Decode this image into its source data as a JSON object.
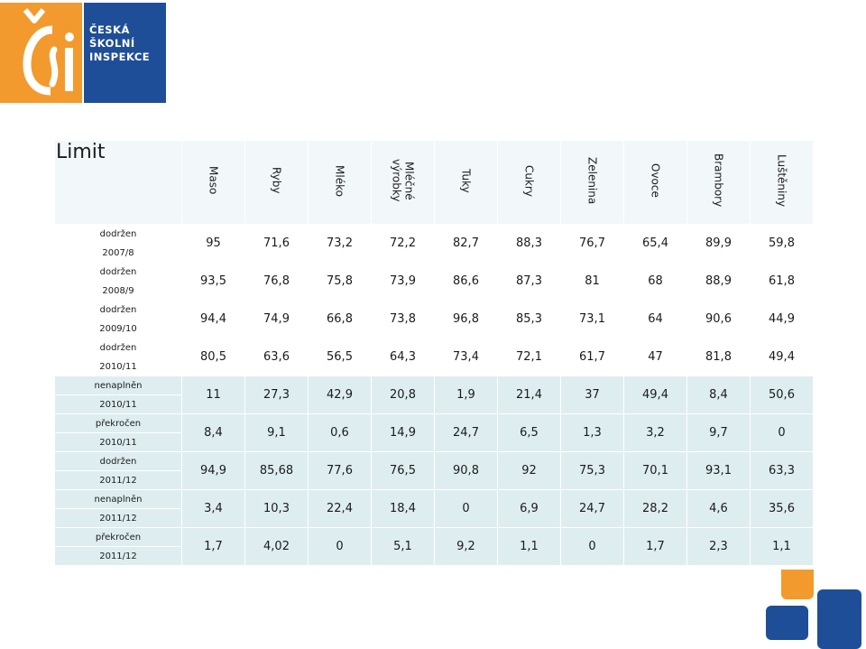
{
  "logo": {
    "line1": "ČESKÁ",
    "line2": "ŠKOLNÍ",
    "line3": "INSPEKCE"
  },
  "title": "Limit",
  "columns": [
    "Maso",
    "Ryby",
    "Mléko",
    "Mléčné výrobky",
    "Tuky",
    "Cukry",
    "Zelenina",
    "Ovoce",
    "Brambory",
    "Luštěniny"
  ],
  "rows": [
    {
      "status": "dodržen",
      "year": "2007/8",
      "values": [
        "95",
        "71,6",
        "73,2",
        "72,2",
        "82,7",
        "88,3",
        "76,7",
        "65,4",
        "89,9",
        "59,8"
      ]
    },
    {
      "status": "dodržen",
      "year": "2008/9",
      "values": [
        "93,5",
        "76,8",
        "75,8",
        "73,9",
        "86,6",
        "87,3",
        "81",
        "68",
        "88,9",
        "61,8"
      ]
    },
    {
      "status": "dodržen",
      "year": "2009/10",
      "values": [
        "94,4",
        "74,9",
        "66,8",
        "73,8",
        "96,8",
        "85,3",
        "73,1",
        "64",
        "90,6",
        "44,9"
      ]
    },
    {
      "status": "dodržen",
      "year": "2010/11",
      "values": [
        "80,5",
        "63,6",
        "56,5",
        "64,3",
        "73,4",
        "72,1",
        "61,7",
        "47",
        "81,8",
        "49,4"
      ]
    },
    {
      "status": "nenaplněn",
      "year": "2010/11",
      "values": [
        "11",
        "27,3",
        "42,9",
        "20,8",
        "1,9",
        "21,4",
        "37",
        "49,4",
        "8,4",
        "50,6"
      ]
    },
    {
      "status": "překročen",
      "year": "2010/11",
      "values": [
        "8,4",
        "9,1",
        "0,6",
        "14,9",
        "24,7",
        "6,5",
        "1,3",
        "3,2",
        "9,7",
        "0"
      ]
    },
    {
      "status": "dodržen",
      "year": "2011/12",
      "values": [
        "94,9",
        "85,68",
        "77,6",
        "76,5",
        "90,8",
        "92",
        "75,3",
        "70,1",
        "93,1",
        "63,3"
      ]
    },
    {
      "status": "nenaplněn",
      "year": "2011/12",
      "values": [
        "3,4",
        "10,3",
        "22,4",
        "18,4",
        "0",
        "6,9",
        "24,7",
        "28,2",
        "4,6",
        "35,6"
      ]
    },
    {
      "status": "překročen",
      "year": "2011/12",
      "values": [
        "1,7",
        "4,02",
        "0",
        "5,1",
        "9,2",
        "1,1",
        "0",
        "1,7",
        "2,3",
        "1,1"
      ]
    }
  ],
  "colors": {
    "red": "#c8201f",
    "green": "#1b9a4c",
    "cyan": "#1aa7c9",
    "brand_orange": "#f39a2e",
    "brand_blue": "#1f4e98"
  }
}
